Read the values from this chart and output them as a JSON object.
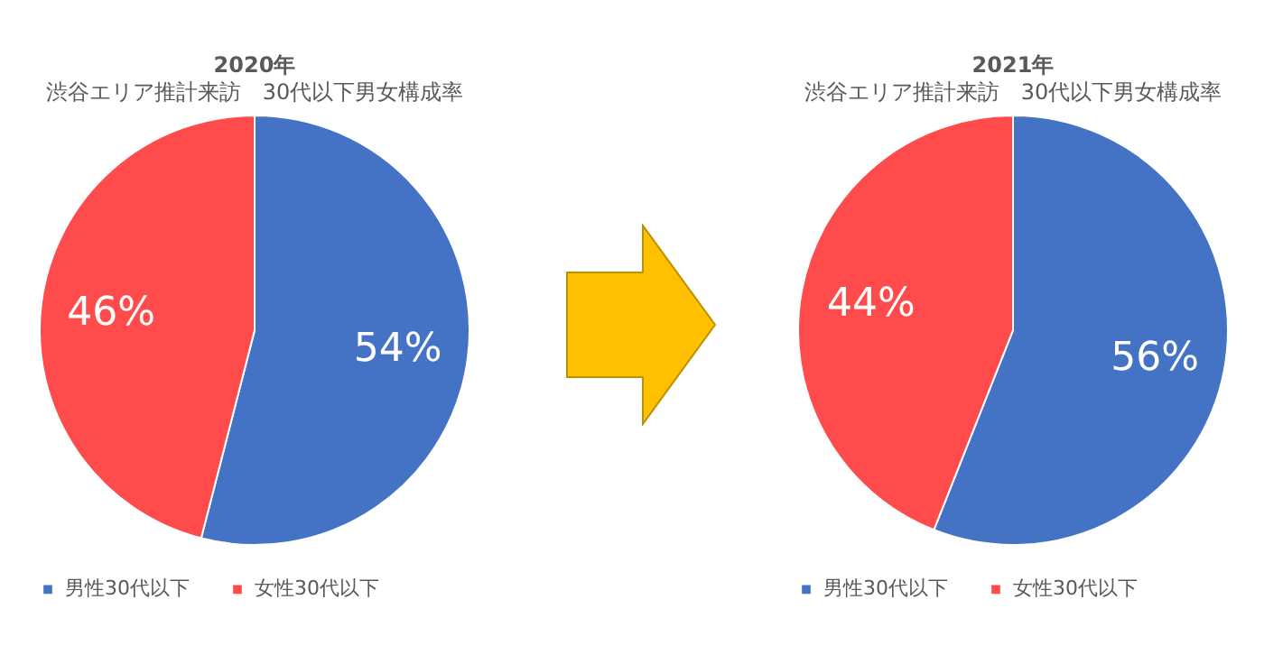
{
  "chart_data": [
    {
      "type": "pie",
      "title": "2020年",
      "subtitle": "渋谷エリア推計来訪　30代以下男女構成率",
      "categories": [
        "男性30代以下",
        "女性30代以下"
      ],
      "values": [
        54,
        46
      ],
      "colors": [
        "#4472c4",
        "#ff4b4b"
      ],
      "value_labels": [
        "54%",
        "46%"
      ],
      "legend": "bottom"
    },
    {
      "type": "pie",
      "title": "2021年",
      "subtitle": "渋谷エリア推計来訪　30代以下男女構成率",
      "categories": [
        "男性30代以下",
        "女性30代以下"
      ],
      "values": [
        56,
        44
      ],
      "colors": [
        "#4472c4",
        "#ff4b4b"
      ],
      "value_labels": [
        "56%",
        "44%"
      ],
      "legend": "bottom"
    }
  ]
}
